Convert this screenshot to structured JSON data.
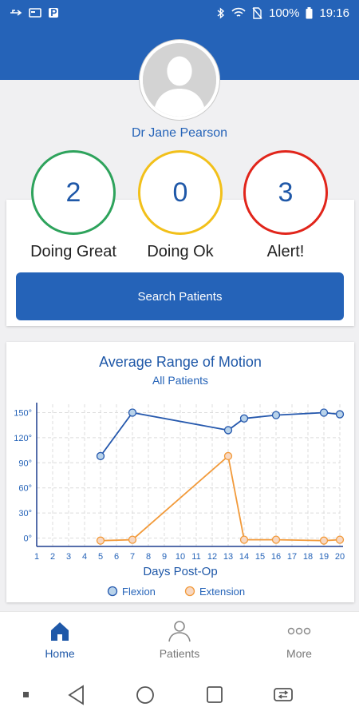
{
  "status_bar": {
    "battery": "100%",
    "time": "19:16",
    "left_icons": [
      "usb-icon",
      "card-icon",
      "parking-icon"
    ],
    "right_icons": [
      "bluetooth-icon",
      "wifi-icon",
      "no-sim-icon",
      "battery-icon"
    ]
  },
  "doctor": {
    "name": "Dr Jane Pearson"
  },
  "stats": [
    {
      "value": "2",
      "label": "Doing Great",
      "color": "#2ea35c"
    },
    {
      "value": "0",
      "label": "Doing Ok",
      "color": "#f2c01a"
    },
    {
      "value": "3",
      "label": "Alert!",
      "color": "#e1251b"
    }
  ],
  "search_button": {
    "label": "Search Patients"
  },
  "chart_data": {
    "type": "line",
    "title": "Average Range of Motion",
    "subtitle": "All Patients",
    "xlabel": "Days Post-Op",
    "ylabel": "",
    "x_ticks": [
      1,
      2,
      3,
      4,
      5,
      6,
      7,
      8,
      9,
      10,
      11,
      12,
      13,
      14,
      15,
      16,
      17,
      18,
      19,
      20
    ],
    "y_ticks": [
      "0°",
      "30°",
      "60°",
      "90°",
      "120°",
      "150°"
    ],
    "xlim": [
      1,
      20
    ],
    "ylim": [
      -10,
      160
    ],
    "grid": true,
    "legend_position": "bottom-center",
    "series": [
      {
        "name": "Flexion",
        "color": "#2558ad",
        "fill": "#b9d3ea",
        "points": [
          [
            5,
            98
          ],
          [
            7,
            150
          ],
          [
            13,
            129
          ],
          [
            14,
            143
          ],
          [
            16,
            147
          ],
          [
            19,
            150
          ],
          [
            20,
            148
          ]
        ]
      },
      {
        "name": "Extension",
        "color": "#f29a3a",
        "fill": "#f7d8c3",
        "points": [
          [
            5,
            -3
          ],
          [
            7,
            -2
          ],
          [
            13,
            98
          ],
          [
            14,
            -2
          ],
          [
            16,
            -2
          ],
          [
            19,
            -3
          ],
          [
            20,
            -2
          ]
        ]
      }
    ]
  },
  "bottom_nav": {
    "items": [
      {
        "label": "Home",
        "icon": "home-icon",
        "active": true
      },
      {
        "label": "Patients",
        "icon": "person-icon",
        "active": false
      },
      {
        "label": "More",
        "icon": "more-dots-icon",
        "active": false
      }
    ]
  },
  "system_nav": {
    "icons": [
      "square-dot-icon",
      "back-triangle-icon",
      "home-circle-icon",
      "recents-square-icon",
      "switch-app-icon"
    ]
  }
}
